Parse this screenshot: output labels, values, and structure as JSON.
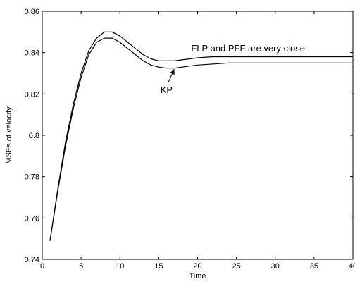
{
  "chart_data": {
    "type": "line",
    "title": "",
    "xlabel": "Time",
    "ylabel": "MSEs of velocity",
    "xlim": [
      0,
      40
    ],
    "ylim": [
      0.74,
      0.86
    ],
    "xticks": [
      0,
      5,
      10,
      15,
      20,
      25,
      30,
      35,
      40
    ],
    "xtick_labels": [
      "0",
      "5",
      "10",
      "15",
      "20",
      "25",
      "30",
      "35",
      "40"
    ],
    "yticks": [
      0.74,
      0.76,
      0.78,
      0.8,
      0.82,
      0.84,
      0.86
    ],
    "ytick_labels": [
      "0.74",
      "0.76",
      "0.78",
      "0.8",
      "0.82",
      "0.84",
      "0.86"
    ],
    "grid": false,
    "series": [
      {
        "color": "#000000",
        "x": [
          1,
          2,
          3,
          4,
          5,
          6,
          7,
          8,
          9,
          10,
          11,
          12,
          13,
          14,
          15,
          16,
          17,
          18,
          19,
          20,
          22,
          24,
          26,
          28,
          30,
          32,
          34,
          36,
          38,
          40
        ],
        "y": [
          0.749,
          0.774,
          0.797,
          0.815,
          0.83,
          0.841,
          0.847,
          0.85,
          0.85,
          0.848,
          0.845,
          0.842,
          0.839,
          0.837,
          0.836,
          0.836,
          0.836,
          0.8365,
          0.837,
          0.8375,
          0.838,
          0.838,
          0.838,
          0.838,
          0.838,
          0.838,
          0.838,
          0.838,
          0.838,
          0.838
        ]
      },
      {
        "color": "#000000",
        "x": [
          1,
          2,
          3,
          4,
          5,
          6,
          7,
          8,
          9,
          10,
          11,
          12,
          13,
          14,
          15,
          16,
          17,
          18,
          19,
          20,
          22,
          24,
          26,
          28,
          30,
          32,
          34,
          36,
          38,
          40
        ],
        "y": [
          0.749,
          0.773,
          0.795,
          0.813,
          0.828,
          0.839,
          0.845,
          0.847,
          0.847,
          0.845,
          0.842,
          0.839,
          0.836,
          0.834,
          0.833,
          0.8325,
          0.8325,
          0.833,
          0.8335,
          0.834,
          0.8345,
          0.835,
          0.835,
          0.835,
          0.835,
          0.835,
          0.835,
          0.835,
          0.835,
          0.835
        ]
      }
    ],
    "annotations": [
      {
        "text": "FLP and PFF are very close",
        "x": 26.5,
        "y": 0.8405
      },
      {
        "text": "KP",
        "x": 16,
        "y": 0.8205,
        "arrow_to": {
          "x": 17,
          "y": 0.833
        }
      }
    ]
  }
}
